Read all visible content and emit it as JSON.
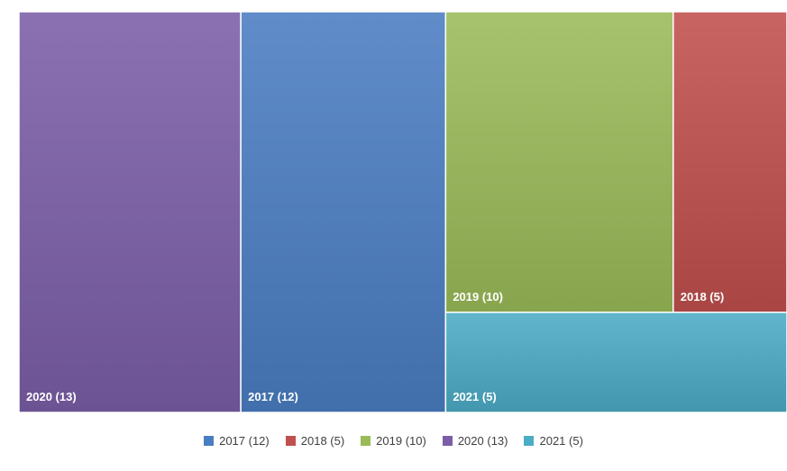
{
  "chart_data": {
    "type": "treemap",
    "title": "",
    "items": [
      {
        "label": "2020 (13)",
        "name": "2020",
        "value": 13,
        "color": "#7B5EA7"
      },
      {
        "label": "2017 (12)",
        "name": "2017",
        "value": 12,
        "color": "#4A7EC2"
      },
      {
        "label": "2019 (10)",
        "name": "2019",
        "value": 10,
        "color": "#9BBB59"
      },
      {
        "label": "2018 (5)",
        "name": "2018",
        "value": 5,
        "color": "#C0504D"
      },
      {
        "label": "2021 (5)",
        "name": "2021",
        "value": 5,
        "color": "#4BACC6"
      }
    ],
    "legend": {
      "position": "bottom",
      "entries": [
        {
          "label": "2017 (12)",
          "color": "#4A7EC2"
        },
        {
          "label": "2018 (5)",
          "color": "#C0504D"
        },
        {
          "label": "2019 (10)",
          "color": "#9BBB59"
        },
        {
          "label": "2020 (13)",
          "color": "#7B5EA7"
        },
        {
          "label": "2021 (5)",
          "color": "#4BACC6"
        }
      ]
    }
  }
}
